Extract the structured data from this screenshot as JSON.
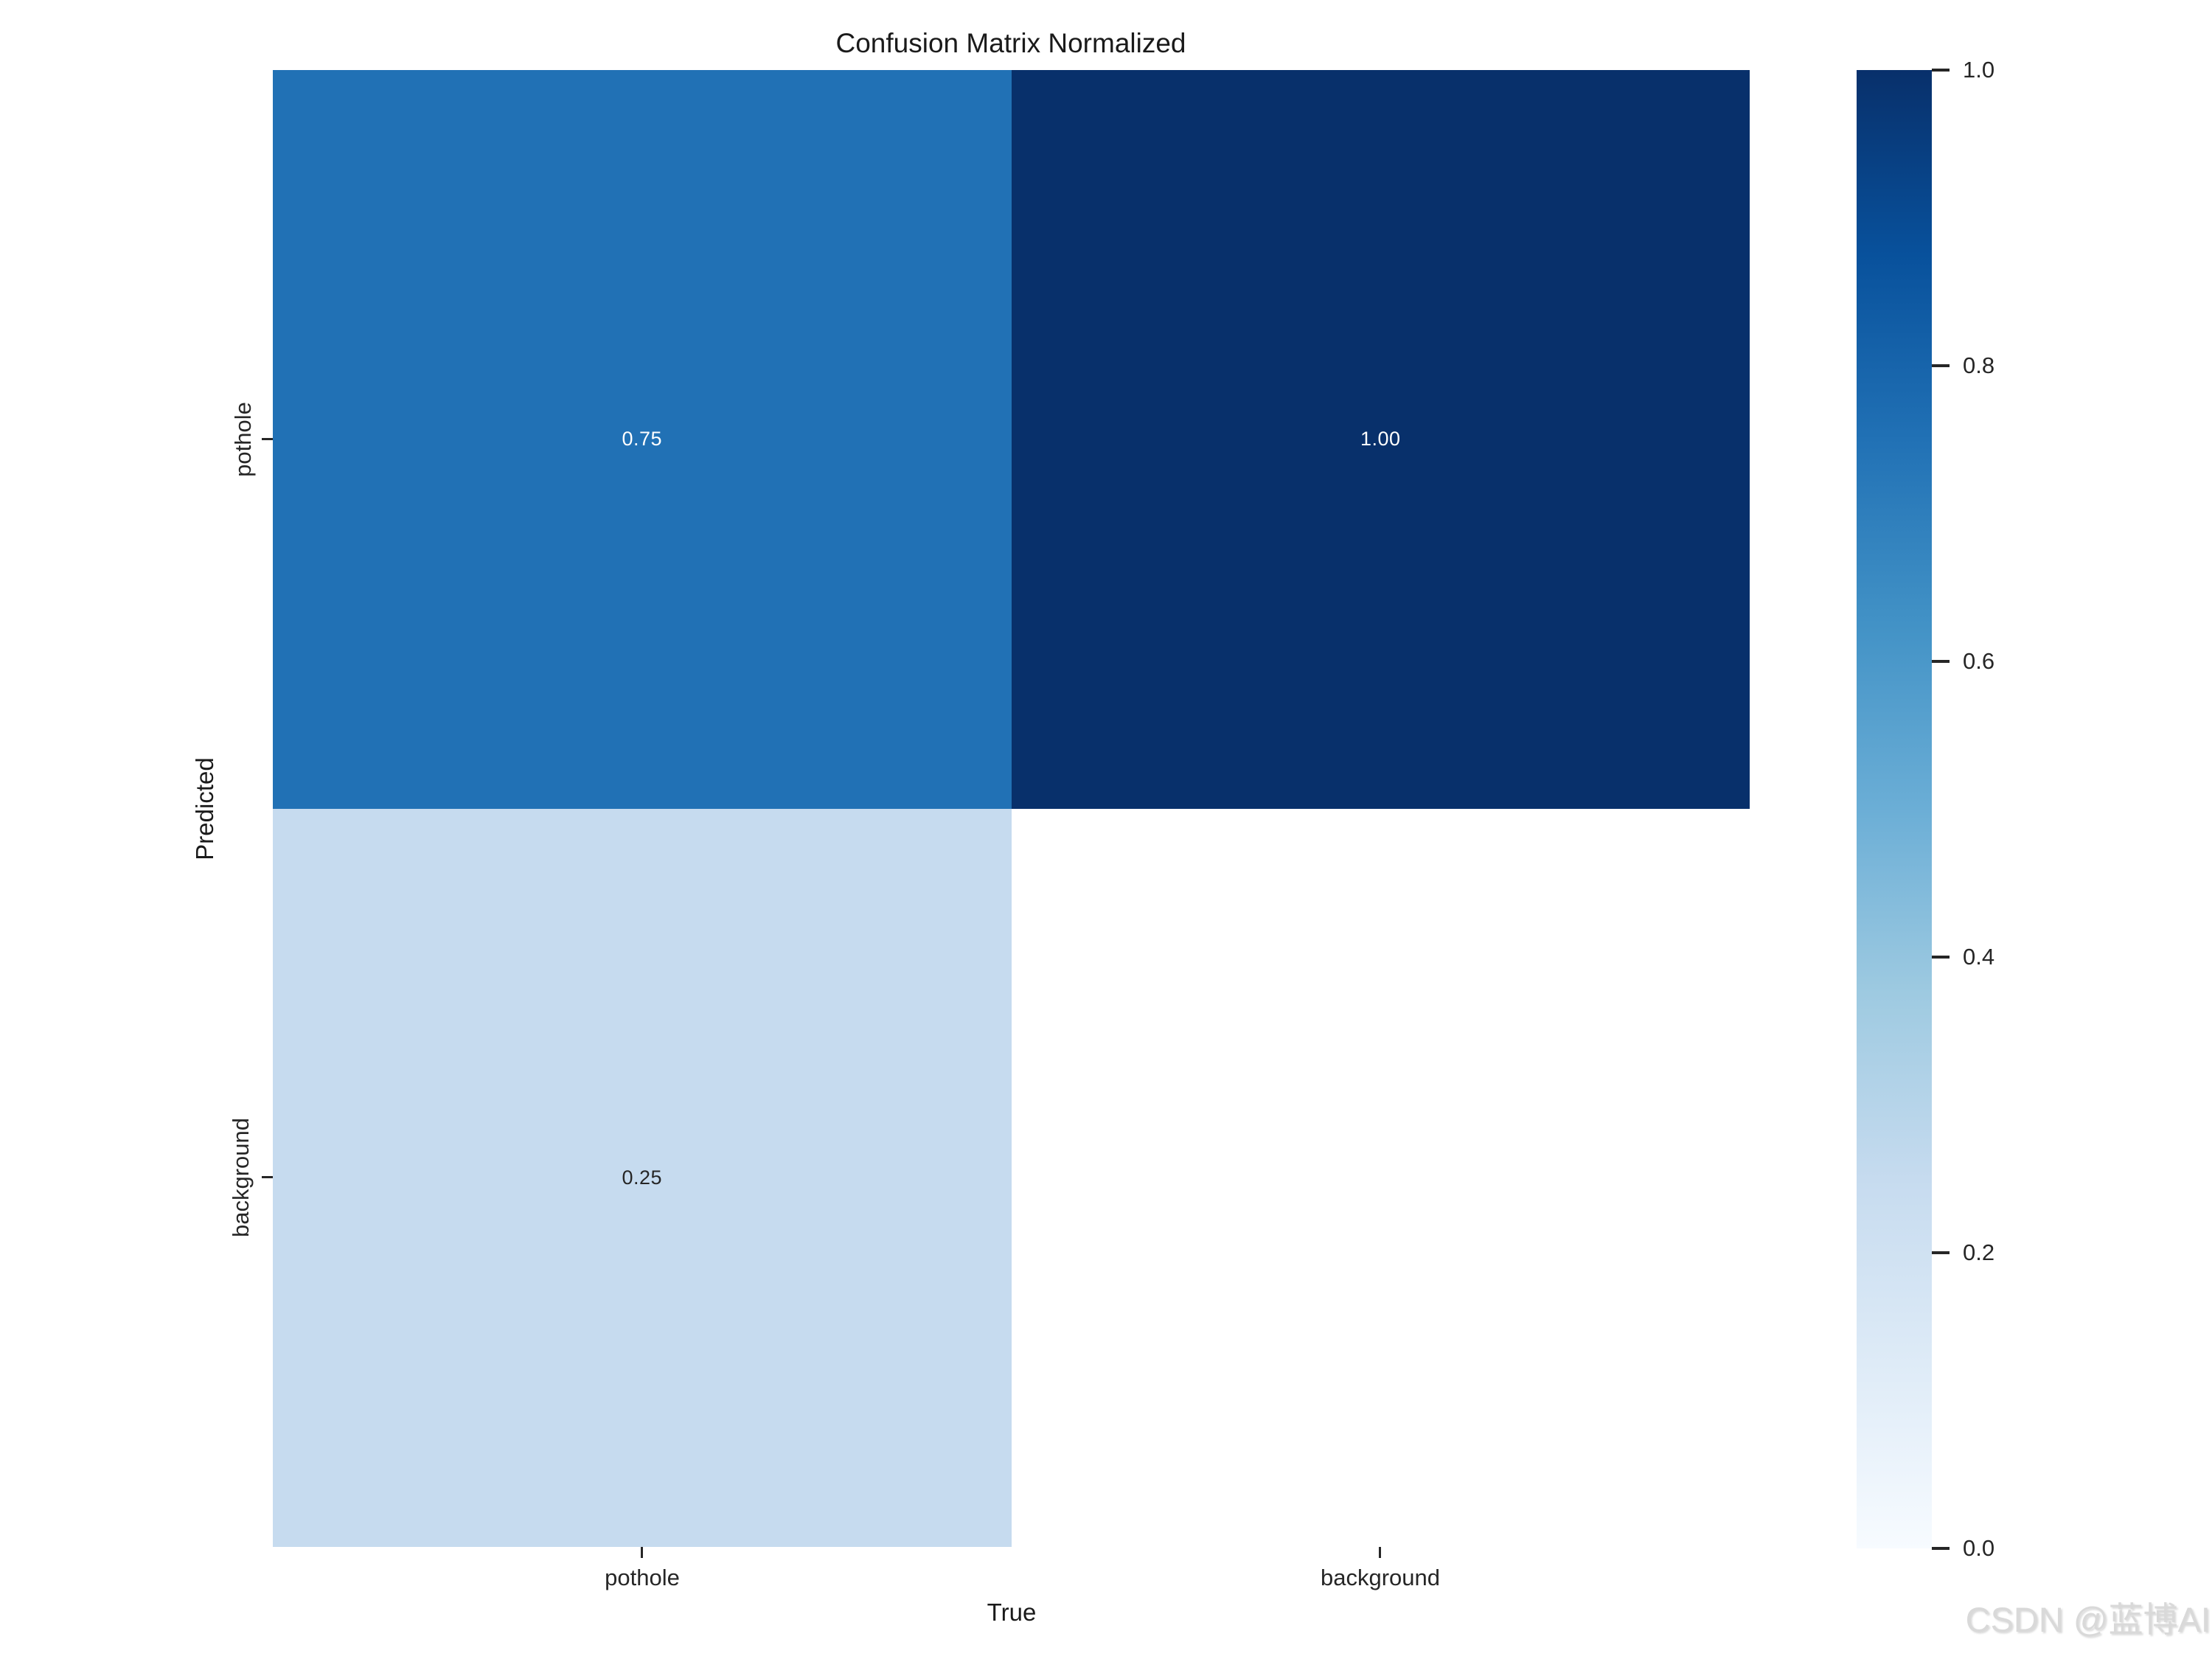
{
  "page": {
    "background_color": "#ffffff",
    "watermark": "CSDN @蓝博AI"
  },
  "chart_data": {
    "type": "heatmap",
    "title": "Confusion Matrix Normalized",
    "xlabel": "True",
    "ylabel": "Predicted",
    "x_categories": [
      "pothole",
      "background"
    ],
    "y_categories": [
      "pothole",
      "background"
    ],
    "values": [
      [
        0.75,
        1.0
      ],
      [
        0.25,
        null
      ]
    ],
    "cells": [
      [
        {
          "label": "0.75",
          "color": "#2171b5",
          "text_color": "#ffffff"
        },
        {
          "label": "1.00",
          "color": "#08306b",
          "text_color": "#ffffff"
        }
      ],
      [
        {
          "label": "0.25",
          "color": "#c6dbef",
          "text_color": "#262626"
        },
        {
          "label": "",
          "color": "#ffffff",
          "text_color": "#262626"
        }
      ]
    ],
    "colormap": "Blues",
    "grid": false,
    "legend_position": "colorbar-right",
    "colorbar": {
      "min": 0.0,
      "max": 1.0,
      "ticks": [
        "1.0",
        "0.8",
        "0.6",
        "0.4",
        "0.2",
        "0.0"
      ],
      "gradient_stops_top_to_bottom": [
        "#08306b",
        "#08519c",
        "#2171b5",
        "#4292c6",
        "#6baed6",
        "#9ecae1",
        "#c6dbef",
        "#deebf7",
        "#f7fbff"
      ]
    }
  }
}
